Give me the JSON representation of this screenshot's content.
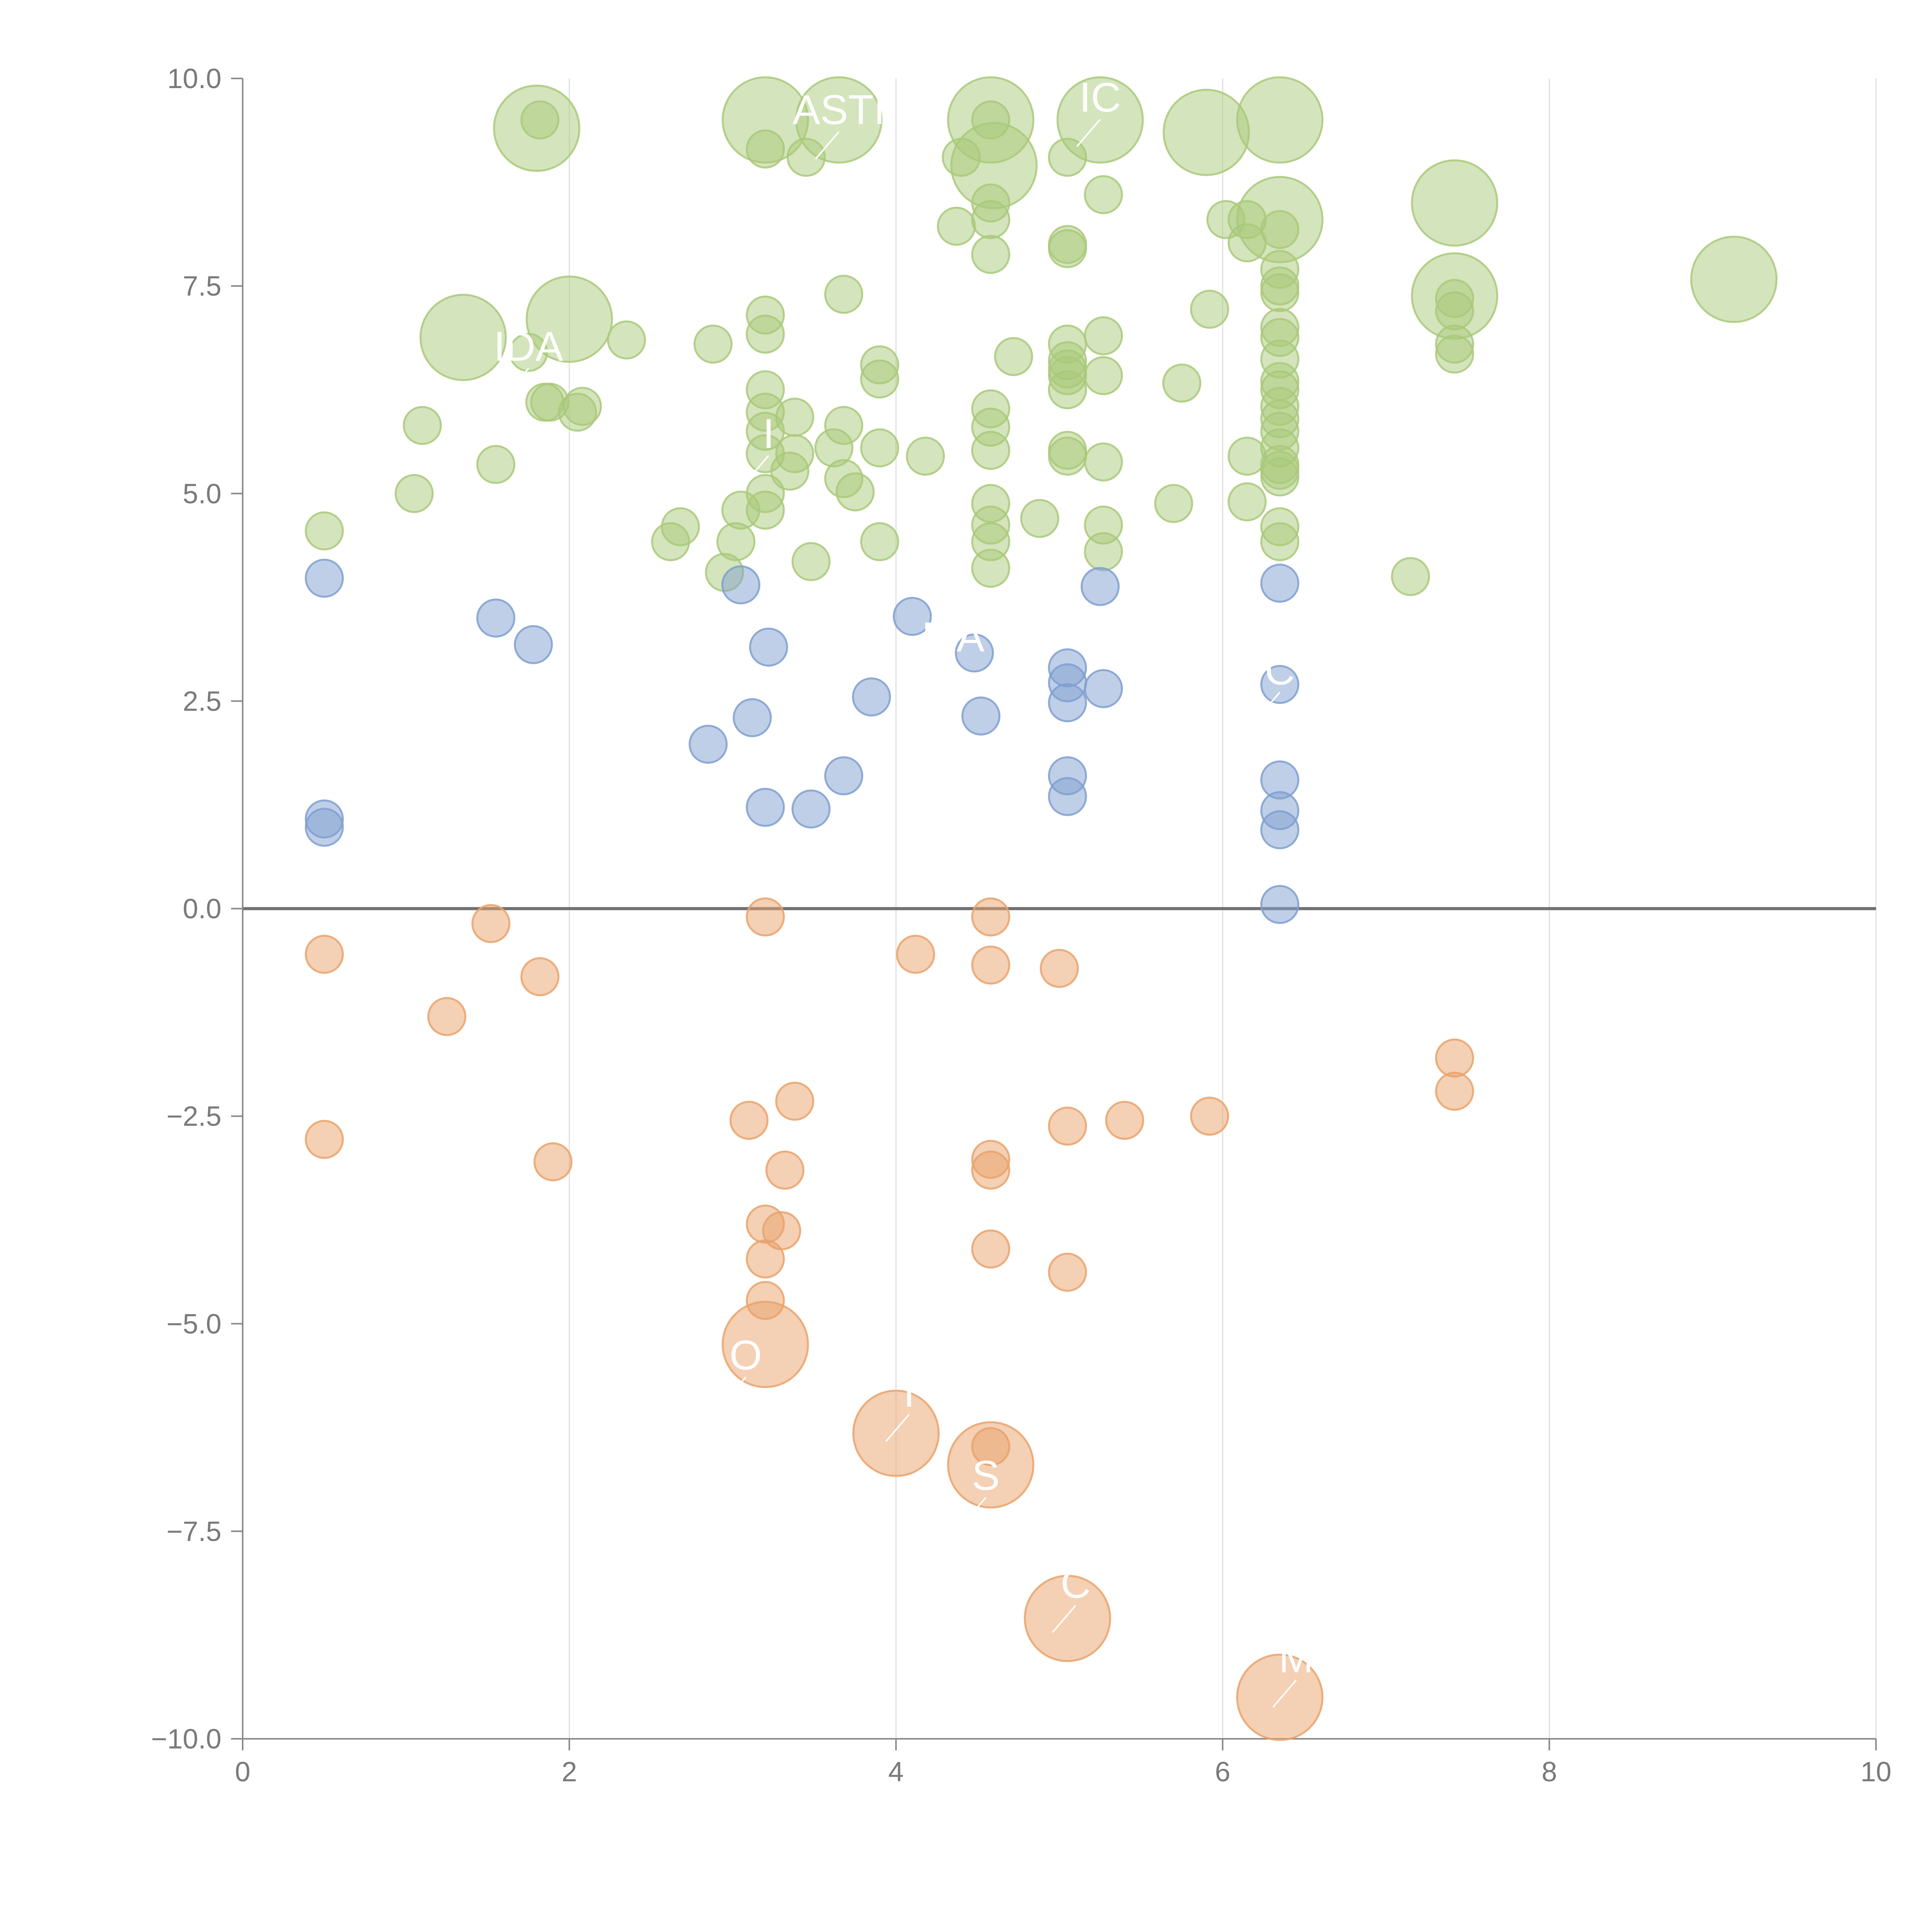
{
  "chart_data": {
    "type": "scatter",
    "title": "",
    "xlabel": "",
    "ylabel": "",
    "xlim": [
      0,
      10
    ],
    "ylim": [
      -10,
      10
    ],
    "x_ticks": [
      0,
      2,
      4,
      6,
      8,
      10
    ],
    "x_tick_labels": [
      "0",
      "2",
      "4",
      "6",
      "8",
      "10"
    ],
    "y_ticks": [
      -10,
      -7.5,
      -5,
      -2.5,
      0,
      2.5,
      5,
      7.5,
      10
    ],
    "y_tick_labels": [
      "−10.0",
      "−7.5",
      "−5.0",
      "−2.5",
      "0.0",
      "2.5",
      "5.0",
      "7.5",
      "10.0"
    ],
    "grid": "vertical lines at x ticks",
    "reference_line_y": 0,
    "colors": {
      "green": "#a9c97a",
      "blue": "#7f9fd0",
      "orange": "#e9a26a",
      "zero_line": "#707070",
      "axis": "#8a8a8a",
      "grid": "#e0e0e0",
      "label_text": "#ffffff"
    },
    "size_levels": {
      "small": 1,
      "large": 2.3
    },
    "series": [
      {
        "color": "green",
        "points": [
          [
            1.8,
            9.4,
            "l"
          ],
          [
            1.82,
            9.5
          ],
          [
            3.2,
            9.5,
            "l"
          ],
          [
            3.65,
            9.5,
            "l"
          ],
          [
            4.58,
            9.5,
            "l"
          ],
          [
            4.58,
            9.5
          ],
          [
            5.25,
            9.5,
            "l"
          ],
          [
            5.9,
            9.35,
            "l"
          ],
          [
            6.35,
            9.5,
            "l"
          ],
          [
            3.2,
            9.15
          ],
          [
            3.45,
            9.05
          ],
          [
            4.4,
            9.05
          ],
          [
            4.6,
            8.95,
            "l"
          ],
          [
            5.05,
            9.05
          ],
          [
            4.58,
            8.5
          ],
          [
            4.58,
            8.3
          ],
          [
            4.37,
            8.22
          ],
          [
            5.27,
            8.6
          ],
          [
            4.58,
            7.88
          ],
          [
            5.05,
            8.0
          ],
          [
            5.05,
            7.95
          ],
          [
            6.02,
            8.3
          ],
          [
            6.15,
            8.3
          ],
          [
            6.35,
            8.3,
            "l"
          ],
          [
            6.15,
            8.02
          ],
          [
            6.35,
            8.18
          ],
          [
            7.42,
            8.5,
            "l"
          ],
          [
            9.13,
            7.58,
            "l"
          ],
          [
            7.42,
            7.38,
            "l"
          ],
          [
            7.42,
            7.35
          ],
          [
            7.42,
            7.2
          ],
          [
            7.42,
            6.8
          ],
          [
            7.42,
            6.68
          ],
          [
            6.35,
            7.7
          ],
          [
            6.35,
            7.5
          ],
          [
            6.35,
            7.42
          ],
          [
            6.35,
            7.0
          ],
          [
            6.35,
            6.88
          ],
          [
            6.35,
            6.62
          ],
          [
            6.35,
            6.35
          ],
          [
            6.35,
            6.25
          ],
          [
            6.35,
            6.05
          ],
          [
            6.35,
            5.9
          ],
          [
            6.35,
            5.75
          ],
          [
            6.35,
            5.55
          ],
          [
            6.35,
            5.35
          ],
          [
            6.35,
            5.28
          ],
          [
            6.35,
            5.2
          ],
          [
            6.35,
            4.6
          ],
          [
            6.35,
            4.42
          ],
          [
            6.15,
            4.9
          ],
          [
            6.15,
            5.45
          ],
          [
            5.92,
            7.22
          ],
          [
            5.75,
            6.33
          ],
          [
            5.7,
            4.88
          ],
          [
            7.15,
            4.0
          ],
          [
            1.35,
            6.88,
            "l"
          ],
          [
            2.0,
            7.1,
            "l"
          ],
          [
            2.35,
            6.85
          ],
          [
            1.75,
            6.7
          ],
          [
            1.85,
            6.1
          ],
          [
            1.88,
            6.1
          ],
          [
            2.05,
            5.98
          ],
          [
            2.08,
            6.05
          ],
          [
            1.1,
            5.82
          ],
          [
            1.55,
            5.35
          ],
          [
            1.05,
            5.0
          ],
          [
            0.5,
            4.55
          ],
          [
            2.88,
            6.8
          ],
          [
            3.2,
            7.15
          ],
          [
            3.2,
            6.92
          ],
          [
            3.68,
            7.4
          ],
          [
            3.2,
            6.25
          ],
          [
            3.2,
            5.98
          ],
          [
            3.2,
            5.75
          ],
          [
            3.2,
            5.48
          ],
          [
            3.2,
            5.0
          ],
          [
            3.2,
            4.8
          ],
          [
            3.38,
            5.92
          ],
          [
            3.38,
            5.48
          ],
          [
            3.35,
            5.27
          ],
          [
            3.68,
            5.82
          ],
          [
            3.62,
            5.55
          ],
          [
            3.68,
            5.18
          ],
          [
            3.75,
            5.02
          ],
          [
            3.05,
            4.8
          ],
          [
            3.02,
            4.42
          ],
          [
            2.95,
            4.05
          ],
          [
            2.62,
            4.42
          ],
          [
            2.68,
            4.6
          ],
          [
            3.48,
            4.18
          ],
          [
            3.9,
            6.55
          ],
          [
            3.9,
            6.38
          ],
          [
            3.9,
            5.55
          ],
          [
            3.9,
            4.42
          ],
          [
            4.18,
            5.45
          ],
          [
            4.72,
            6.65
          ],
          [
            4.58,
            6.02
          ],
          [
            4.58,
            5.8
          ],
          [
            4.58,
            5.52
          ],
          [
            4.58,
            4.88
          ],
          [
            4.58,
            4.62
          ],
          [
            4.58,
            4.42
          ],
          [
            4.58,
            4.1
          ],
          [
            4.88,
            4.7
          ],
          [
            5.05,
            6.8
          ],
          [
            5.05,
            6.6
          ],
          [
            5.05,
            6.5
          ],
          [
            5.05,
            6.42
          ],
          [
            5.05,
            6.25
          ],
          [
            5.05,
            5.52
          ],
          [
            5.05,
            5.45
          ],
          [
            5.27,
            6.9
          ],
          [
            5.27,
            6.42
          ],
          [
            5.27,
            5.38
          ],
          [
            5.27,
            4.62
          ],
          [
            5.27,
            4.3
          ]
        ]
      },
      {
        "color": "blue",
        "points": [
          [
            0.5,
            3.98
          ],
          [
            0.5,
            1.08
          ],
          [
            0.5,
            0.98
          ],
          [
            1.55,
            3.5
          ],
          [
            1.78,
            3.18
          ],
          [
            3.05,
            3.9
          ],
          [
            3.22,
            3.15
          ],
          [
            3.12,
            2.3
          ],
          [
            2.85,
            1.98
          ],
          [
            3.2,
            1.22
          ],
          [
            3.48,
            1.2
          ],
          [
            3.68,
            1.6
          ],
          [
            3.85,
            2.55
          ],
          [
            4.1,
            3.52
          ],
          [
            4.48,
            3.08
          ],
          [
            4.52,
            2.32
          ],
          [
            5.05,
            2.9
          ],
          [
            5.05,
            2.72
          ],
          [
            5.05,
            2.48
          ],
          [
            5.05,
            1.6
          ],
          [
            5.05,
            1.35
          ],
          [
            5.25,
            3.88
          ],
          [
            5.27,
            2.65
          ],
          [
            6.35,
            3.92
          ],
          [
            6.35,
            2.7
          ],
          [
            6.35,
            1.55
          ],
          [
            6.35,
            1.18
          ],
          [
            6.35,
            0.95
          ],
          [
            6.35,
            0.05
          ]
        ]
      },
      {
        "color": "orange",
        "points": [
          [
            0.5,
            -0.55
          ],
          [
            0.5,
            -2.78
          ],
          [
            1.52,
            -0.18
          ],
          [
            1.82,
            -0.82
          ],
          [
            1.25,
            -1.3
          ],
          [
            1.9,
            -3.05
          ],
          [
            3.2,
            -0.1
          ],
          [
            4.12,
            -0.55
          ],
          [
            4.58,
            -0.1
          ],
          [
            4.58,
            -0.68
          ],
          [
            5.0,
            -0.72
          ],
          [
            3.1,
            -2.55
          ],
          [
            3.38,
            -2.32
          ],
          [
            3.32,
            -3.15
          ],
          [
            3.2,
            -3.8
          ],
          [
            3.3,
            -3.88
          ],
          [
            3.2,
            -4.22
          ],
          [
            3.2,
            -4.72
          ],
          [
            3.2,
            -5.25,
            "l"
          ],
          [
            4.0,
            -6.32,
            "l"
          ],
          [
            4.58,
            -6.48
          ],
          [
            4.58,
            -6.7,
            "l"
          ],
          [
            4.58,
            -3.02
          ],
          [
            4.58,
            -3.15
          ],
          [
            4.58,
            -4.1
          ],
          [
            5.05,
            -2.62
          ],
          [
            5.05,
            -4.38
          ],
          [
            5.05,
            -8.55,
            "l"
          ],
          [
            5.4,
            -2.55
          ],
          [
            5.92,
            -2.5
          ],
          [
            6.35,
            -9.5,
            "l"
          ],
          [
            7.42,
            -1.8
          ],
          [
            7.42,
            -2.2
          ]
        ]
      }
    ],
    "labels": [
      {
        "text": "ASTI",
        "x": 3.65,
        "y": 9.45,
        "color": "green"
      },
      {
        "text": "IC",
        "x": 5.25,
        "y": 9.6,
        "color": "green"
      },
      {
        "text": "IDA",
        "x": 1.75,
        "y": 6.6,
        "color": "green"
      },
      {
        "text": "I",
        "x": 3.22,
        "y": 5.55,
        "color": "green"
      },
      {
        "text": "MA",
        "x": 4.35,
        "y": 3.1,
        "color": "blue"
      },
      {
        "text": "C",
        "x": 6.35,
        "y": 2.7,
        "color": "blue"
      },
      {
        "text": "O",
        "x": 3.08,
        "y": -5.55,
        "color": "orange"
      },
      {
        "text": "I",
        "x": 4.08,
        "y": -6.0,
        "color": "orange"
      },
      {
        "text": "S",
        "x": 4.55,
        "y": -7.0,
        "color": "orange"
      },
      {
        "text": "C",
        "x": 5.1,
        "y": -8.3,
        "color": "orange"
      },
      {
        "text": "M",
        "x": 6.45,
        "y": -9.2,
        "color": "orange"
      }
    ]
  }
}
